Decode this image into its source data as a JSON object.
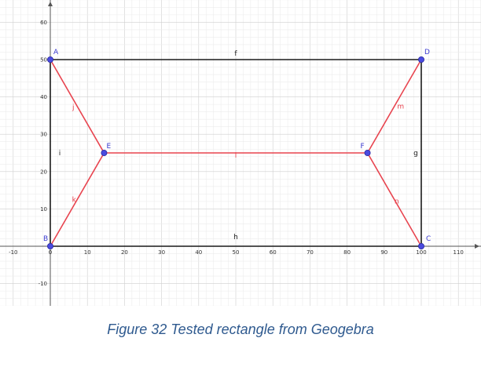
{
  "caption": "Figure 32 Tested rectangle from Geogebra",
  "colors": {
    "black_segments": "#1a1a1a",
    "red_segments": "#e8444f",
    "point_fill": "#4a4adf",
    "point_label": "#3a3ad0",
    "grid_minor": "#ececec",
    "grid_major": "#cfcfcf",
    "caption": "#2f5a8f"
  },
  "axes": {
    "x_ticks": [
      "-10",
      "0",
      "10",
      "20",
      "30",
      "40",
      "50",
      "60",
      "70",
      "80",
      "90",
      "100",
      "110"
    ],
    "y_ticks": [
      "-10",
      "10",
      "20",
      "30",
      "40",
      "50",
      "60"
    ],
    "x_tick_values": [
      -10,
      0,
      10,
      20,
      30,
      40,
      50,
      60,
      70,
      80,
      90,
      100,
      110
    ],
    "y_tick_values": [
      -10,
      10,
      20,
      30,
      40,
      50,
      60
    ]
  },
  "points": [
    {
      "name": "A",
      "x": 0,
      "y": 50
    },
    {
      "name": "B",
      "x": 0,
      "y": 0
    },
    {
      "name": "C",
      "x": 100,
      "y": 0
    },
    {
      "name": "D",
      "x": 100,
      "y": 50
    },
    {
      "name": "E",
      "x": 14.5,
      "y": 25
    },
    {
      "name": "F",
      "x": 85.5,
      "y": 25
    }
  ],
  "segments": [
    {
      "name": "f",
      "from": "A",
      "to": "D",
      "color": "black"
    },
    {
      "name": "g",
      "from": "D",
      "to": "C",
      "color": "black"
    },
    {
      "name": "h",
      "from": "B",
      "to": "C",
      "color": "black"
    },
    {
      "name": "i",
      "from": "A",
      "to": "B",
      "color": "black"
    },
    {
      "name": "j",
      "from": "A",
      "to": "E",
      "color": "red"
    },
    {
      "name": "k",
      "from": "B",
      "to": "E",
      "color": "red"
    },
    {
      "name": "l",
      "from": "E",
      "to": "F",
      "color": "red"
    },
    {
      "name": "m",
      "from": "F",
      "to": "D",
      "color": "red"
    },
    {
      "name": "n",
      "from": "F",
      "to": "C",
      "color": "red"
    }
  ]
}
